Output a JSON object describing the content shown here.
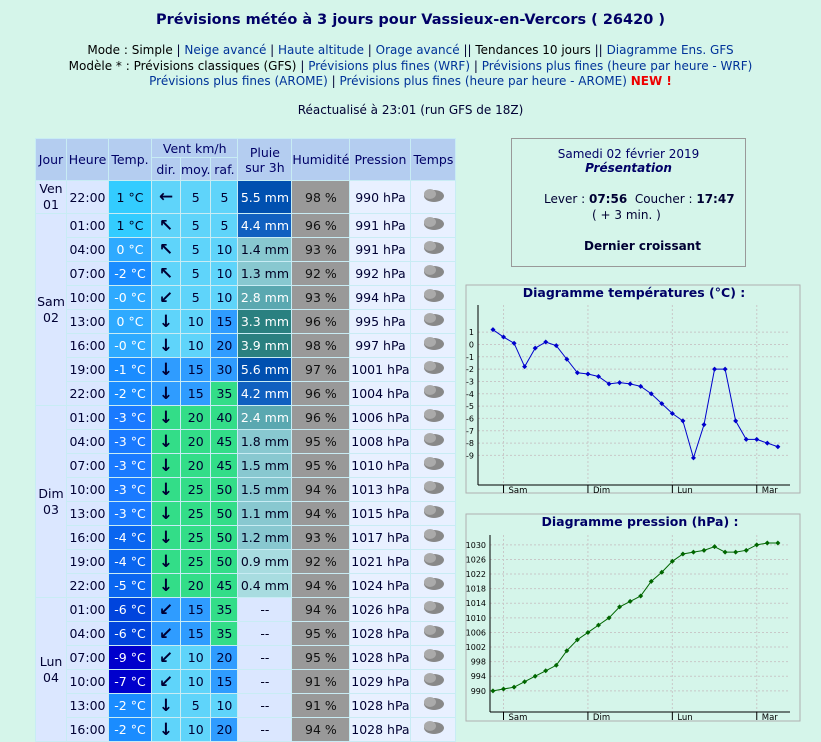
{
  "header": {
    "title": "Prévisions météo à 3 jours pour Vassieux-en-Vercors ( 26420 )",
    "mode_line": [
      "Mode :",
      "Simple",
      "|",
      "Neige avancé",
      "|",
      "Haute altitude",
      "|",
      "Orage avancé",
      "||",
      "Tendances 10 jours",
      "||",
      "Diagramme Ens. GFS"
    ],
    "model_line": [
      "Modèle * :",
      "Prévisions classiques (GFS)",
      "|",
      "Prévisions plus fines (WRF)",
      "|",
      "Prévisions plus fines (heure par heure - WRF)"
    ],
    "model_line2": [
      "Prévisions plus fines (AROME)",
      "|",
      "Prévisions plus fines (heure par heure - AROME)",
      "NEW !"
    ],
    "updated": "Réactualisé à 23:01 (run GFS de 18Z)"
  },
  "table": {
    "headers": {
      "day": "Jour",
      "hour": "Heure",
      "temp": "Temp.",
      "wind": "Vent km/h",
      "dir": "dir.",
      "avg": "moy.",
      "gust": "raf.",
      "rain": "Pluie sur 3h",
      "hum": "Humidité",
      "pres": "Pression",
      "sky": "Temps"
    },
    "groups": [
      {
        "day": "Ven",
        "date": "01",
        "rows": [
          [
            "22:00",
            "1 °C",
            "←",
            "5",
            "5",
            "5.5 mm",
            "98 %",
            "990 hPa"
          ]
        ]
      },
      {
        "day": "Sam",
        "date": "02",
        "rows": [
          [
            "01:00",
            "1 °C",
            "↖",
            "5",
            "5",
            "4.4 mm",
            "96 %",
            "991 hPa"
          ],
          [
            "04:00",
            "0 °C",
            "↖",
            "5",
            "10",
            "1.4 mm",
            "93 %",
            "991 hPa"
          ],
          [
            "07:00",
            "-2 °C",
            "↖",
            "5",
            "10",
            "1.3 mm",
            "92 %",
            "992 hPa"
          ],
          [
            "10:00",
            "-0 °C",
            "↙",
            "5",
            "10",
            "2.8 mm",
            "93 %",
            "994 hPa"
          ],
          [
            "13:00",
            "0 °C",
            "↓",
            "10",
            "15",
            "3.3 mm",
            "96 %",
            "995 hPa"
          ],
          [
            "16:00",
            "-0 °C",
            "↓",
            "10",
            "20",
            "3.9 mm",
            "98 %",
            "997 hPa"
          ],
          [
            "19:00",
            "-1 °C",
            "↓",
            "15",
            "30",
            "5.6 mm",
            "97 %",
            "1001 hPa"
          ],
          [
            "22:00",
            "-2 °C",
            "↓",
            "15",
            "35",
            "4.2 mm",
            "96 %",
            "1004 hPa"
          ]
        ]
      },
      {
        "day": "Dim",
        "date": "03",
        "rows": [
          [
            "01:00",
            "-3 °C",
            "↓",
            "20",
            "40",
            "2.4 mm",
            "96 %",
            "1006 hPa"
          ],
          [
            "04:00",
            "-3 °C",
            "↓",
            "20",
            "45",
            "1.8 mm",
            "95 %",
            "1008 hPa"
          ],
          [
            "07:00",
            "-3 °C",
            "↓",
            "20",
            "45",
            "1.5 mm",
            "95 %",
            "1010 hPa"
          ],
          [
            "10:00",
            "-3 °C",
            "↓",
            "25",
            "50",
            "1.5 mm",
            "94 %",
            "1013 hPa"
          ],
          [
            "13:00",
            "-3 °C",
            "↓",
            "25",
            "50",
            "1.1 mm",
            "94 %",
            "1015 hPa"
          ],
          [
            "16:00",
            "-4 °C",
            "↓",
            "25",
            "50",
            "1.2 mm",
            "93 %",
            "1017 hPa"
          ],
          [
            "19:00",
            "-4 °C",
            "↓",
            "25",
            "50",
            "0.9 mm",
            "92 %",
            "1021 hPa"
          ],
          [
            "22:00",
            "-5 °C",
            "↓",
            "20",
            "45",
            "0.4 mm",
            "94 %",
            "1024 hPa"
          ]
        ]
      },
      {
        "day": "Lun",
        "date": "04",
        "rows": [
          [
            "01:00",
            "-6 °C",
            "↙",
            "15",
            "35",
            "--",
            "94 %",
            "1026 hPa"
          ],
          [
            "04:00",
            "-6 °C",
            "↙",
            "15",
            "35",
            "--",
            "95 %",
            "1028 hPa"
          ],
          [
            "07:00",
            "-9 °C",
            "↙",
            "10",
            "20",
            "--",
            "95 %",
            "1028 hPa"
          ],
          [
            "10:00",
            "-7 °C",
            "↙",
            "10",
            "15",
            "--",
            "91 %",
            "1029 hPa"
          ],
          [
            "13:00",
            "-2 °C",
            "↓",
            "5",
            "10",
            "--",
            "91 %",
            "1028 hPa"
          ],
          [
            "16:00",
            "-2 °C",
            "↓",
            "10",
            "20",
            "--",
            "94 %",
            "1028 hPa"
          ]
        ]
      }
    ]
  },
  "sun_box": {
    "date": "Samedi 02 février 2019",
    "subtitle": "Présentation",
    "rise_label": "Lever :",
    "rise": "07:56",
    "set_label": "Coucher :",
    "set": "17:47",
    "delta": "( + 3 min. )",
    "moon": "Dernier croissant"
  },
  "chart_data": [
    {
      "type": "line",
      "title": "Diagramme températures (°C) :",
      "color": "#0000cc",
      "grid": true,
      "x": [
        0,
        1,
        2,
        3,
        4,
        5,
        6,
        7,
        8,
        9,
        10,
        11,
        12,
        13,
        14,
        15,
        16,
        17,
        18,
        19,
        20,
        21,
        22,
        23,
        24,
        25,
        26,
        27
      ],
      "values": [
        1.2,
        0.6,
        0.1,
        -1.8,
        -0.3,
        0.2,
        -0.1,
        -1.2,
        -2.3,
        -2.4,
        -2.6,
        -3.2,
        -3.1,
        -3.2,
        -3.4,
        -4.0,
        -4.8,
        -5.6,
        -6.2,
        -9.2,
        -6.5,
        -2.0,
        -2.0,
        -6.2,
        -7.7,
        -7.7,
        -8.0,
        -8.3
      ],
      "xlim": [
        -1.42,
        28.15
      ],
      "xticks": [
        {
          "value": 1,
          "label": "Sam"
        },
        {
          "value": 9,
          "label": "Dim"
        },
        {
          "value": 17,
          "label": "Lun"
        },
        {
          "value": 25,
          "label": "Mar"
        }
      ],
      "ylim": [
        -11.4,
        3.2
      ],
      "yticks": [
        1,
        0,
        -1,
        -2,
        -3,
        -4,
        -5,
        -6,
        -7,
        -8,
        -9
      ]
    },
    {
      "type": "line",
      "title": "Diagramme pression (hPa) :",
      "color": "#006600",
      "grid": true,
      "x": [
        0,
        1,
        2,
        3,
        4,
        5,
        6,
        7,
        8,
        9,
        10,
        11,
        12,
        13,
        14,
        15,
        16,
        17,
        18,
        19,
        20,
        21,
        22,
        23,
        24,
        25,
        26,
        27
      ],
      "values": [
        990,
        990.5,
        991,
        992.5,
        994,
        995.5,
        997,
        1001,
        1004,
        1006,
        1008,
        1010,
        1013,
        1014.5,
        1016,
        1020,
        1022.5,
        1025.5,
        1027.5,
        1028,
        1028.5,
        1029.5,
        1028,
        1028,
        1028.5,
        1030,
        1030.5,
        1030.5
      ],
      "xlim": [
        -0.28,
        28.15
      ],
      "xticks": [
        {
          "value": 1,
          "label": "Sam"
        },
        {
          "value": 9,
          "label": "Dim"
        },
        {
          "value": 17,
          "label": "Lun"
        },
        {
          "value": 25,
          "label": "Mar"
        }
      ],
      "ylim": [
        984.2,
        1032.7
      ],
      "yticks": [
        990,
        994,
        998,
        1002,
        1006,
        1010,
        1014,
        1018,
        1022,
        1026,
        1030
      ]
    }
  ]
}
